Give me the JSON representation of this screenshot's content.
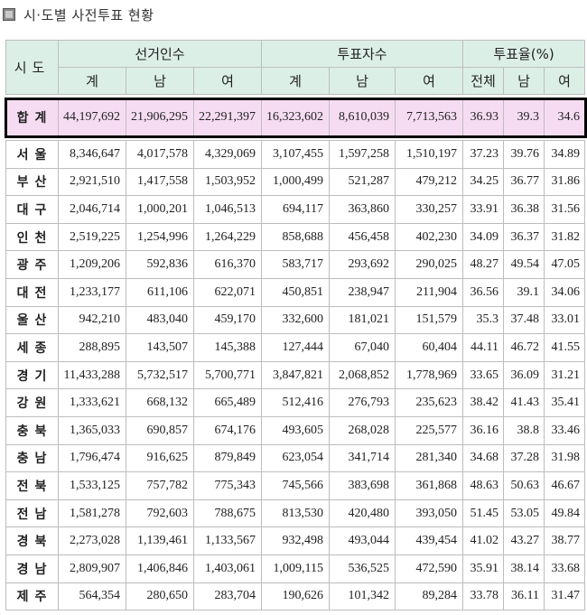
{
  "title": "시·도별 사전투표 현황",
  "header": {
    "region": "시도",
    "groups": [
      "선거인수",
      "투표자수",
      "투표율(%)"
    ],
    "sub": [
      "계",
      "남",
      "여",
      "계",
      "남",
      "여",
      "전체",
      "남",
      "여"
    ]
  },
  "total": {
    "region": "합계",
    "values": [
      "44,197,692",
      "21,906,295",
      "22,291,397",
      "16,323,602",
      "8,610,039",
      "7,713,563",
      "36.93",
      "39.3",
      "34.6"
    ]
  },
  "rows": [
    {
      "region": "서울",
      "values": [
        "8,346,647",
        "4,017,578",
        "4,329,069",
        "3,107,455",
        "1,597,258",
        "1,510,197",
        "37.23",
        "39.76",
        "34.89"
      ]
    },
    {
      "region": "부산",
      "values": [
        "2,921,510",
        "1,417,558",
        "1,503,952",
        "1,000,499",
        "521,287",
        "479,212",
        "34.25",
        "36.77",
        "31.86"
      ]
    },
    {
      "region": "대구",
      "values": [
        "2,046,714",
        "1,000,201",
        "1,046,513",
        "694,117",
        "363,860",
        "330,257",
        "33.91",
        "36.38",
        "31.56"
      ]
    },
    {
      "region": "인천",
      "values": [
        "2,519,225",
        "1,254,996",
        "1,264,229",
        "858,688",
        "456,458",
        "402,230",
        "34.09",
        "36.37",
        "31.82"
      ]
    },
    {
      "region": "광주",
      "values": [
        "1,209,206",
        "592,836",
        "616,370",
        "583,717",
        "293,692",
        "290,025",
        "48.27",
        "49.54",
        "47.05"
      ]
    },
    {
      "region": "대전",
      "values": [
        "1,233,177",
        "611,106",
        "622,071",
        "450,851",
        "238,947",
        "211,904",
        "36.56",
        "39.1",
        "34.06"
      ]
    },
    {
      "region": "울산",
      "values": [
        "942,210",
        "483,040",
        "459,170",
        "332,600",
        "181,021",
        "151,579",
        "35.3",
        "37.48",
        "33.01"
      ]
    },
    {
      "region": "세종",
      "values": [
        "288,895",
        "143,507",
        "145,388",
        "127,444",
        "67,040",
        "60,404",
        "44.11",
        "46.72",
        "41.55"
      ]
    },
    {
      "region": "경기",
      "values": [
        "11,433,288",
        "5,732,517",
        "5,700,771",
        "3,847,821",
        "2,068,852",
        "1,778,969",
        "33.65",
        "36.09",
        "31.21"
      ]
    },
    {
      "region": "강원",
      "values": [
        "1,333,621",
        "668,132",
        "665,489",
        "512,416",
        "276,793",
        "235,623",
        "38.42",
        "41.43",
        "35.41"
      ]
    },
    {
      "region": "충북",
      "values": [
        "1,365,033",
        "690,857",
        "674,176",
        "493,605",
        "268,028",
        "225,577",
        "36.16",
        "38.8",
        "33.46"
      ]
    },
    {
      "region": "충남",
      "values": [
        "1,796,474",
        "916,625",
        "879,849",
        "623,054",
        "341,714",
        "281,340",
        "34.68",
        "37.28",
        "31.98"
      ]
    },
    {
      "region": "전북",
      "values": [
        "1,533,125",
        "757,782",
        "775,343",
        "745,566",
        "383,698",
        "361,868",
        "48.63",
        "50.63",
        "46.67"
      ]
    },
    {
      "region": "전남",
      "values": [
        "1,581,278",
        "792,603",
        "788,675",
        "813,530",
        "420,480",
        "393,050",
        "51.45",
        "53.05",
        "49.84"
      ]
    },
    {
      "region": "경북",
      "values": [
        "2,273,028",
        "1,139,461",
        "1,133,567",
        "932,498",
        "493,044",
        "439,454",
        "41.02",
        "43.27",
        "38.77"
      ]
    },
    {
      "region": "경남",
      "values": [
        "2,809,907",
        "1,406,846",
        "1,403,061",
        "1,009,115",
        "536,525",
        "472,590",
        "35.91",
        "38.14",
        "33.68"
      ]
    },
    {
      "region": "제주",
      "values": [
        "564,354",
        "280,650",
        "283,704",
        "190,626",
        "101,342",
        "89,284",
        "33.78",
        "36.11",
        "31.47"
      ]
    }
  ]
}
